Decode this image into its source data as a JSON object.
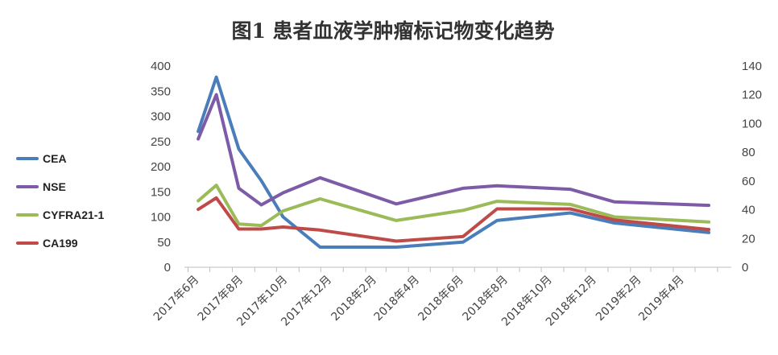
{
  "chart_data": {
    "type": "line",
    "title": "图1  患者血液学肿瘤标记物变化趋势",
    "xlabel": "",
    "ylabel": "",
    "x": [
      "2017-06-15",
      "2017-07-10",
      "2017-08-10",
      "2017-09-10",
      "2017-10-10",
      "2017-11-30",
      "2018-03-15",
      "2018-06-15",
      "2018-08-01",
      "2018-11-10",
      "2019-01-10",
      "2019-05-20"
    ],
    "x_ticks": [
      "2017年6月",
      "2017年8月",
      "2017年10月",
      "2017年12月",
      "2018年2月",
      "2018年4月",
      "2018年6月",
      "2018年8月",
      "2018年10月",
      "2018年12月",
      "2019年2月",
      "2019年4月"
    ],
    "y_left": {
      "range": [
        0,
        400
      ],
      "ticks": [
        "0",
        "50",
        "100",
        "150",
        "200",
        "250",
        "300",
        "350",
        "400"
      ]
    },
    "y_right": {
      "range": [
        0,
        140
      ],
      "ticks": [
        "0",
        "20",
        "40",
        "60",
        "80",
        "100",
        "120",
        "140"
      ]
    },
    "grid": false,
    "legend_position": "left",
    "series": [
      {
        "name": "CEA",
        "color": "#4a7ebb",
        "axis": "left",
        "values": [
          270,
          378,
          235,
          172,
          100,
          40,
          40,
          50,
          93,
          108,
          88,
          69
        ]
      },
      {
        "name": "NSE",
        "color": "#7d5ba6",
        "axis": "left",
        "values": [
          255,
          343,
          157,
          124,
          148,
          178,
          126,
          157,
          162,
          155,
          130,
          123
        ]
      },
      {
        "name": "CYFRA21-1",
        "color": "#9bbb59",
        "axis": "left",
        "values": [
          132,
          163,
          86,
          83,
          112,
          136,
          93,
          113,
          131,
          125,
          100,
          90
        ]
      },
      {
        "name": "CA199",
        "color": "#be4b48",
        "axis": "left",
        "values": [
          115,
          138,
          76,
          76,
          80,
          74,
          52,
          61,
          116,
          116,
          94,
          75
        ]
      }
    ]
  }
}
